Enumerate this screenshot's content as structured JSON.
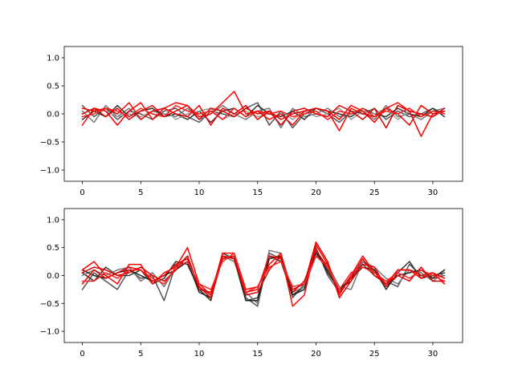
{
  "chart_data": [
    {
      "type": "line",
      "title": "",
      "xlabel": "",
      "ylabel": "",
      "xlim": [
        -1.55,
        32.55
      ],
      "ylim": [
        -1.2,
        1.2
      ],
      "x_ticks": [
        0,
        5,
        10,
        15,
        20,
        25,
        30
      ],
      "y_ticks": [
        -1.0,
        -0.5,
        0.0,
        0.5,
        1.0
      ],
      "x_tick_labels": [
        "0",
        "5",
        "10",
        "15",
        "20",
        "25",
        "30"
      ],
      "y_tick_labels": [
        "−1.0",
        "−0.5",
        "0.0",
        "0.5",
        "1.0"
      ],
      "grid": false,
      "x": [
        0,
        1,
        2,
        3,
        4,
        5,
        6,
        7,
        8,
        9,
        10,
        11,
        12,
        13,
        14,
        15,
        16,
        17,
        18,
        19,
        20,
        21,
        22,
        23,
        24,
        25,
        26,
        27,
        28,
        29,
        30,
        31
      ],
      "series": [
        {
          "color": "#555555",
          "values": [
            0.15,
            -0.05,
            0.1,
            -0.1,
            0.05,
            0.0,
            -0.1,
            0.05,
            0.1,
            -0.05,
            -0.15,
            0.05,
            0.0,
            -0.05,
            0.1,
            0.2,
            -0.2,
            0.05,
            -0.25,
            0.0,
            0.1,
            0.0,
            -0.15,
            0.05,
            0.0,
            0.1,
            -0.1,
            0.05,
            -0.05,
            0.0,
            0.1,
            0.0
          ]
        },
        {
          "color": "#777777",
          "values": [
            0.05,
            -0.15,
            0.15,
            -0.05,
            0.1,
            -0.1,
            0.05,
            0.0,
            -0.05,
            0.1,
            -0.1,
            0.0,
            0.15,
            0.0,
            -0.1,
            0.05,
            0.1,
            -0.25,
            0.1,
            -0.05,
            0.0,
            0.1,
            -0.05,
            0.0,
            0.05,
            -0.1,
            0.15,
            -0.05,
            0.0,
            -0.1,
            0.05,
            0.1
          ]
        },
        {
          "color": "#333333",
          "values": [
            -0.1,
            0.05,
            -0.05,
            0.15,
            -0.05,
            0.05,
            0.1,
            -0.05,
            0.0,
            -0.1,
            0.05,
            -0.15,
            0.05,
            0.1,
            -0.05,
            0.15,
            0.0,
            -0.05,
            0.05,
            -0.1,
            0.1,
            0.05,
            0.0,
            -0.05,
            0.1,
            0.0,
            -0.05,
            0.1,
            0.0,
            -0.05,
            0.1,
            -0.05
          ]
        },
        {
          "color": "#999999",
          "values": [
            0.0,
            0.1,
            0.05,
            -0.05,
            0.0,
            -0.05,
            0.05,
            0.1,
            -0.1,
            0.0,
            0.05,
            0.1,
            -0.1,
            0.0,
            0.05,
            -0.05,
            0.0,
            0.05,
            -0.1,
            0.05,
            -0.05,
            0.0,
            0.1,
            -0.1,
            0.05,
            0.0,
            0.1,
            -0.1,
            0.05,
            0.0,
            -0.05,
            0.05
          ]
        },
        {
          "color": "#ff0000",
          "values": [
            -0.2,
            0.1,
            0.05,
            -0.2,
            0.05,
            0.2,
            -0.1,
            0.1,
            0.2,
            0.15,
            -0.05,
            0.0,
            0.2,
            0.4,
            0.0,
            0.05,
            -0.1,
            0.0,
            -0.2,
            0.05,
            0.1,
            0.05,
            -0.3,
            0.1,
            0.0,
            -0.05,
            0.1,
            0.2,
            0.05,
            -0.4,
            0.0,
            0.05
          ]
        },
        {
          "color": "#ee0000",
          "values": [
            0.1,
            0.05,
            0.1,
            0.0,
            0.2,
            -0.1,
            0.05,
            0.1,
            0.0,
            -0.05,
            0.15,
            -0.2,
            0.1,
            0.0,
            0.15,
            -0.1,
            0.05,
            -0.1,
            0.0,
            0.05,
            0.1,
            0.05,
            -0.1,
            0.15,
            0.05,
            -0.15,
            0.1,
            0.0,
            -0.2,
            0.15,
            0.0,
            0.05
          ]
        },
        {
          "color": "#dd0000",
          "values": [
            0.0,
            0.1,
            -0.05,
            0.1,
            -0.1,
            0.05,
            0.15,
            -0.05,
            0.05,
            0.15,
            -0.1,
            0.1,
            0.05,
            -0.05,
            0.1,
            0.0,
            0.05,
            -0.2,
            0.05,
            0.1,
            0.0,
            -0.05,
            0.15,
            0.05,
            -0.1,
            0.1,
            -0.25,
            0.15,
            0.05,
            0.0,
            -0.05,
            0.1
          ]
        },
        {
          "color": "#ff1a1a",
          "values": [
            -0.05,
            0.0,
            0.1,
            0.05,
            -0.05,
            0.1,
            0.0,
            -0.05,
            0.15,
            0.05,
            0.0,
            0.05,
            -0.1,
            0.1,
            -0.05,
            0.05,
            0.0,
            0.05,
            -0.05,
            0.0,
            0.05,
            -0.1,
            0.05,
            0.0,
            0.1,
            -0.05,
            0.05,
            0.0,
            0.1,
            -0.05,
            0.05,
            0.0
          ]
        }
      ]
    },
    {
      "type": "line",
      "title": "",
      "xlabel": "",
      "ylabel": "",
      "xlim": [
        -1.55,
        32.55
      ],
      "ylim": [
        -1.2,
        1.2
      ],
      "x_ticks": [
        0,
        5,
        10,
        15,
        20,
        25,
        30
      ],
      "y_ticks": [
        -1.0,
        -0.5,
        0.0,
        0.5,
        1.0
      ],
      "x_tick_labels": [
        "0",
        "5",
        "10",
        "15",
        "20",
        "25",
        "30"
      ],
      "y_tick_labels": [
        "−1.0",
        "−0.5",
        "0.0",
        "0.5",
        "1.0"
      ],
      "grid": false,
      "x": [
        0,
        1,
        2,
        3,
        4,
        5,
        6,
        7,
        8,
        9,
        10,
        11,
        12,
        13,
        14,
        15,
        16,
        17,
        18,
        19,
        20,
        21,
        22,
        23,
        24,
        25,
        26,
        27,
        28,
        29,
        30,
        31
      ],
      "series": [
        {
          "color": "#555555",
          "values": [
            -0.25,
            0.05,
            -0.1,
            -0.25,
            0.1,
            -0.05,
            0.0,
            -0.45,
            0.2,
            0.3,
            -0.2,
            -0.4,
            0.3,
            0.35,
            -0.4,
            -0.55,
            0.4,
            0.3,
            -0.4,
            -0.15,
            0.5,
            0.0,
            -0.3,
            0.0,
            0.2,
            0.0,
            -0.1,
            -0.2,
            0.2,
            0.0,
            -0.05,
            0.0
          ]
        },
        {
          "color": "#333333",
          "values": [
            0.05,
            -0.1,
            0.15,
            0.0,
            0.0,
            0.1,
            -0.15,
            -0.05,
            0.25,
            0.2,
            -0.25,
            -0.45,
            0.4,
            0.3,
            -0.45,
            -0.4,
            0.35,
            0.25,
            -0.35,
            -0.2,
            0.4,
            0.1,
            -0.25,
            -0.1,
            0.25,
            0.1,
            -0.25,
            0.05,
            0.25,
            -0.05,
            0.0,
            0.05
          ]
        },
        {
          "color": "#777777",
          "values": [
            0.0,
            0.1,
            0.0,
            0.1,
            0.15,
            -0.1,
            0.05,
            -0.2,
            0.15,
            0.35,
            -0.2,
            -0.35,
            0.35,
            0.25,
            -0.3,
            -0.5,
            0.45,
            0.4,
            -0.3,
            -0.2,
            0.35,
            0.2,
            -0.2,
            -0.25,
            0.25,
            0.15,
            -0.05,
            -0.15,
            0.1,
            0.05,
            -0.1,
            0.05
          ]
        },
        {
          "color": "#222222",
          "values": [
            0.1,
            0.0,
            -0.05,
            0.05,
            0.1,
            0.0,
            -0.1,
            0.0,
            0.1,
            0.25,
            -0.3,
            -0.4,
            0.35,
            0.3,
            -0.45,
            -0.45,
            0.3,
            0.35,
            -0.35,
            -0.25,
            0.45,
            0.05,
            -0.25,
            -0.05,
            0.15,
            0.1,
            -0.2,
            0.0,
            0.05,
            0.1,
            -0.05,
            0.1
          ]
        },
        {
          "color": "#ff0000",
          "values": [
            0.1,
            0.25,
            0.0,
            -0.15,
            0.2,
            0.2,
            -0.15,
            0.05,
            0.15,
            0.5,
            -0.15,
            -0.35,
            0.4,
            0.4,
            -0.25,
            -0.2,
            0.2,
            0.4,
            -0.55,
            -0.35,
            0.55,
            0.2,
            -0.35,
            0.0,
            0.35,
            0.05,
            -0.15,
            0.1,
            0.1,
            -0.05,
            0.05,
            -0.15
          ]
        },
        {
          "color": "#ee0000",
          "values": [
            -0.15,
            0.1,
            -0.05,
            0.05,
            0.15,
            0.1,
            -0.1,
            0.0,
            0.2,
            0.3,
            -0.2,
            -0.4,
            0.3,
            0.35,
            -0.3,
            -0.25,
            0.35,
            0.3,
            -0.25,
            -0.15,
            0.6,
            0.25,
            -0.4,
            -0.1,
            0.2,
            0.15,
            -0.2,
            0.1,
            0.1,
            0.0,
            0.05,
            -0.05
          ]
        },
        {
          "color": "#dd0000",
          "values": [
            0.05,
            0.15,
            0.1,
            0.0,
            0.05,
            0.15,
            0.0,
            -0.1,
            0.1,
            0.35,
            -0.25,
            -0.3,
            0.35,
            0.3,
            -0.35,
            -0.3,
            0.1,
            0.35,
            -0.3,
            -0.1,
            0.45,
            0.15,
            -0.3,
            -0.05,
            0.3,
            0.0,
            -0.15,
            0.0,
            -0.1,
            0.15,
            -0.1,
            -0.1
          ]
        },
        {
          "color": "#ff2020",
          "values": [
            -0.1,
            -0.1,
            0.05,
            -0.05,
            0.1,
            0.1,
            -0.05,
            -0.15,
            0.15,
            0.25,
            -0.15,
            -0.25,
            0.25,
            0.4,
            -0.3,
            -0.2,
            0.15,
            0.25,
            -0.2,
            -0.15,
            0.35,
            0.15,
            -0.25,
            0.05,
            0.15,
            0.05,
            -0.1,
            0.05,
            -0.05,
            0.1,
            0.0,
            -0.1
          ]
        }
      ]
    }
  ]
}
